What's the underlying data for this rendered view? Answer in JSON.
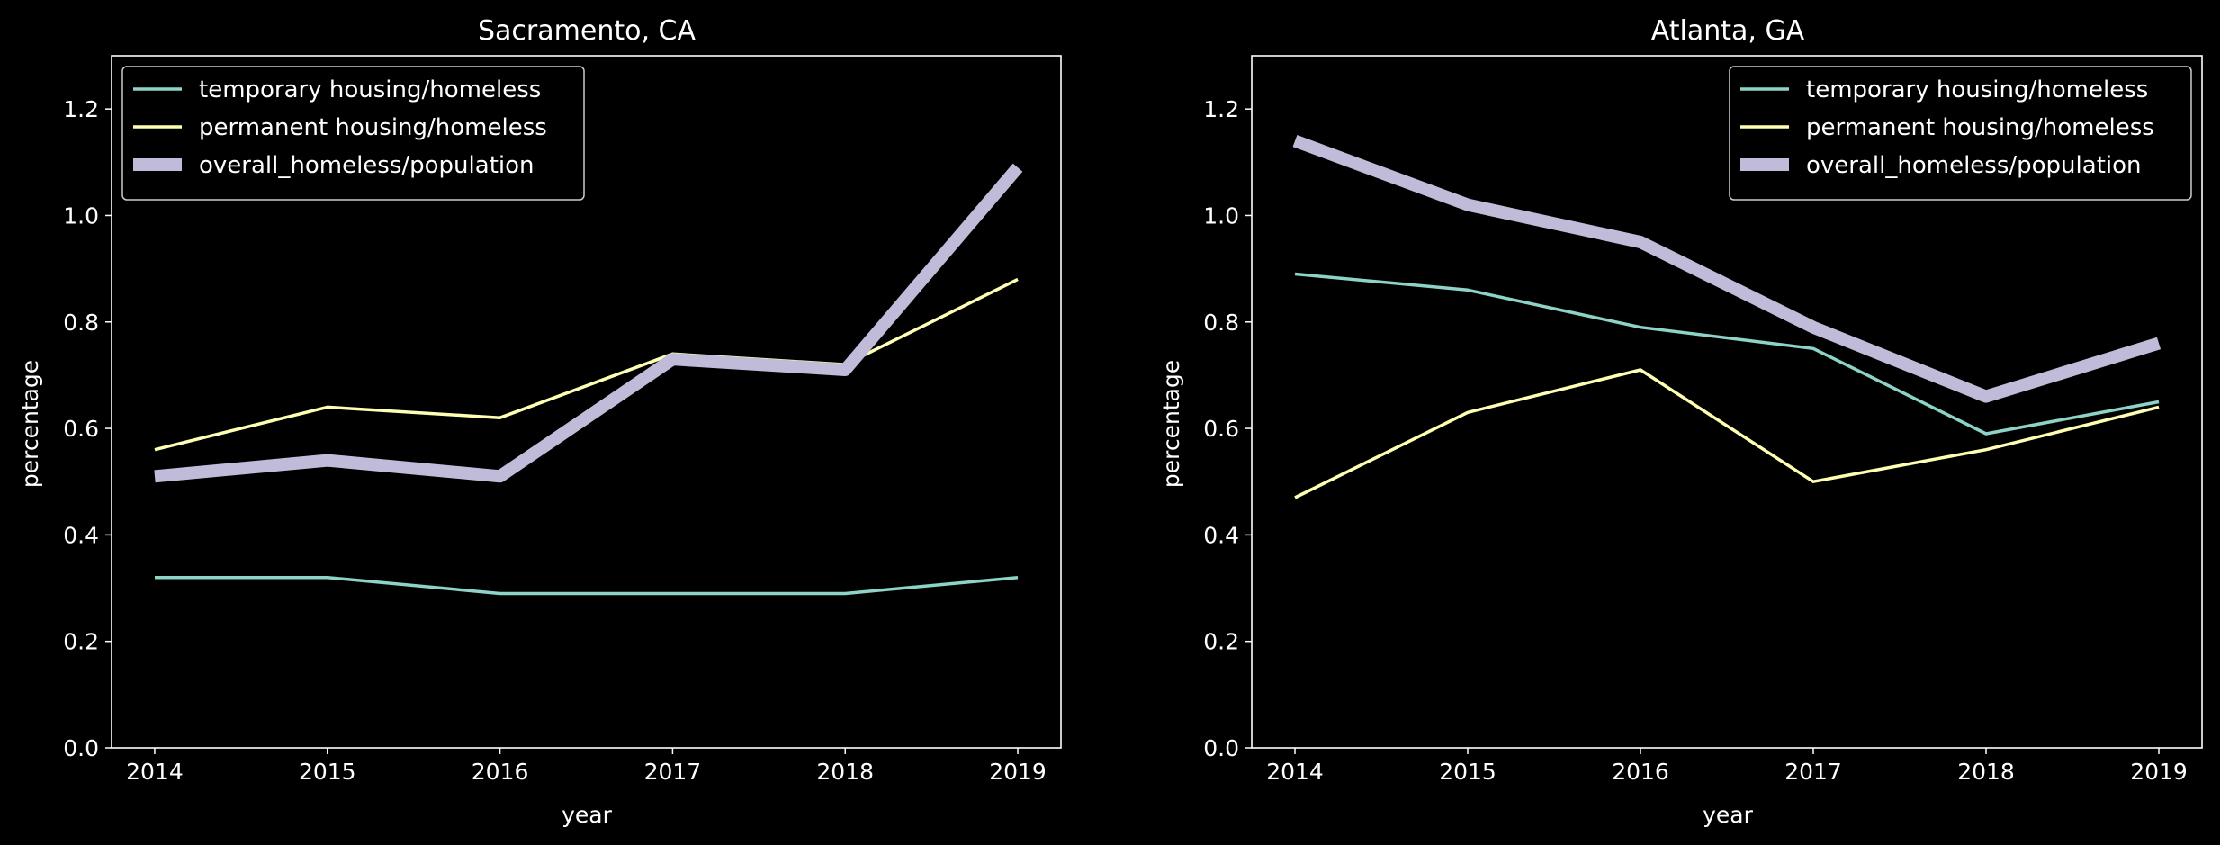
{
  "colors": {
    "background": "#000000",
    "foreground": "#ffffff",
    "temporary": "#8dd3c7",
    "permanent": "#feffb3",
    "overall": "#bfbbd9"
  },
  "chart_data": [
    {
      "type": "line",
      "title": "Sacramento, CA",
      "xlabel": "year",
      "ylabel": "percentage",
      "x": [
        2014,
        2015,
        2016,
        2017,
        2018,
        2019
      ],
      "xlim": [
        2013.75,
        2019.25
      ],
      "ylim": [
        0,
        1.3
      ],
      "yticks": [
        "0.0",
        "0.2",
        "0.4",
        "0.6",
        "0.8",
        "1.0",
        "1.2"
      ],
      "legend_position": "top-left",
      "series": [
        {
          "name": "temporary housing/homeless",
          "values": [
            0.32,
            0.32,
            0.29,
            0.29,
            0.29,
            0.32
          ]
        },
        {
          "name": "permanent housing/homeless",
          "values": [
            0.56,
            0.64,
            0.62,
            0.74,
            0.72,
            0.88
          ]
        },
        {
          "name": "overall_homeless/population",
          "values": [
            0.51,
            0.54,
            0.51,
            0.73,
            0.71,
            1.09
          ]
        }
      ]
    },
    {
      "type": "line",
      "title": "Atlanta, GA",
      "xlabel": "year",
      "ylabel": "percentage",
      "x": [
        2014,
        2015,
        2016,
        2017,
        2018,
        2019
      ],
      "xlim": [
        2013.75,
        2019.25
      ],
      "ylim": [
        0,
        1.3
      ],
      "yticks": [
        "0.0",
        "0.2",
        "0.4",
        "0.6",
        "0.8",
        "1.0",
        "1.2"
      ],
      "legend_position": "top-right",
      "series": [
        {
          "name": "temporary housing/homeless",
          "values": [
            0.89,
            0.86,
            0.79,
            0.75,
            0.59,
            0.65
          ]
        },
        {
          "name": "permanent housing/homeless",
          "values": [
            0.47,
            0.63,
            0.71,
            0.5,
            0.56,
            0.64
          ]
        },
        {
          "name": "overall_homeless/population",
          "values": [
            1.14,
            1.02,
            0.95,
            0.79,
            0.66,
            0.76
          ]
        }
      ]
    }
  ]
}
